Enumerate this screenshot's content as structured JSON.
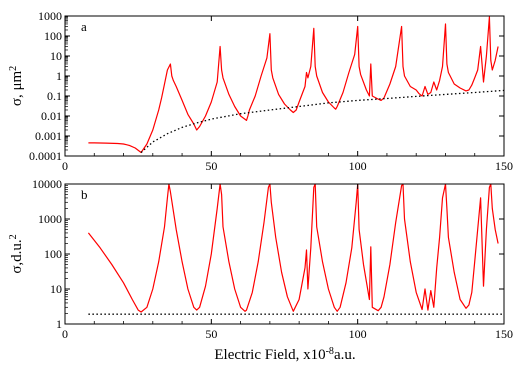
{
  "xlabel_main": "Electric Field, x10",
  "xlabel_sup": "-8",
  "xlabel_tail": "a.u.",
  "chart_data": [
    {
      "type": "line",
      "panel_label": "a",
      "ylabel": "σ, μm",
      "ylabel_sup": "2",
      "yscale": "log",
      "xlim": [
        0,
        150
      ],
      "ylim": [
        0.0001,
        1000
      ],
      "x_ticks": [
        0,
        50,
        100,
        150
      ],
      "x_tick_labels": [
        "0",
        "50",
        "100",
        "150"
      ],
      "y_ticks": [
        0.0001,
        0.001,
        0.01,
        0.1,
        1,
        10,
        100,
        1000
      ],
      "y_tick_labels": [
        "0.0001",
        "0.001",
        "0.01",
        "0.1",
        "1",
        "10",
        "100",
        "1000"
      ],
      "grid": false,
      "series": [
        {
          "style": "solid",
          "color": "#ff0000",
          "x": [
            8,
            10,
            14,
            18,
            20,
            22,
            24,
            26,
            28,
            30,
            32,
            33,
            34,
            35,
            36,
            36.5,
            37,
            38,
            40,
            42,
            44,
            45,
            46,
            48,
            50,
            52,
            53,
            53.5,
            54,
            56,
            58,
            60,
            62,
            62.5,
            63,
            65,
            67,
            69,
            70,
            70.5,
            71,
            73,
            75,
            77,
            78,
            79,
            80,
            82,
            82.5,
            83,
            84,
            85,
            85.5,
            86,
            88,
            90,
            92,
            92.5,
            93,
            95,
            97,
            99,
            100,
            100.5,
            101,
            103,
            104,
            104.5,
            105,
            107,
            108,
            109,
            111,
            113,
            115,
            115.5,
            116,
            118,
            120,
            121,
            122,
            123,
            124,
            125,
            126,
            127,
            128,
            129,
            130,
            130.5,
            131,
            133,
            135,
            137,
            138,
            139,
            140,
            141,
            142,
            143,
            144,
            145,
            145.5,
            146,
            147,
            148
          ],
          "y": [
            0.00045,
            0.00045,
            0.00044,
            0.00042,
            0.0004,
            0.00034,
            0.00025,
            0.00015,
            0.0004,
            0.002,
            0.02,
            0.08,
            0.4,
            2,
            4,
            1,
            0.6,
            0.3,
            0.06,
            0.012,
            0.004,
            0.002,
            0.003,
            0.01,
            0.05,
            0.5,
            30,
            2,
            0.8,
            0.12,
            0.03,
            0.01,
            0.006,
            0.01,
            0.02,
            0.1,
            1,
            8,
            130,
            2,
            0.8,
            0.12,
            0.04,
            0.02,
            0.015,
            0.02,
            0.05,
            0.3,
            1.5,
            0.8,
            3,
            240,
            3,
            1,
            0.15,
            0.05,
            0.025,
            0.022,
            0.03,
            0.15,
            1.5,
            12,
            300,
            3,
            1.2,
            0.2,
            0.1,
            4,
            0.1,
            0.07,
            0.06,
            0.08,
            0.4,
            3,
            300,
            3,
            1,
            0.3,
            0.2,
            0.13,
            0.1,
            0.3,
            0.12,
            0.15,
            0.5,
            0.2,
            0.6,
            3,
            400,
            4,
            1.5,
            0.4,
            0.25,
            0.18,
            0.2,
            0.35,
            0.8,
            2,
            30,
            0.5,
            10,
            900,
            6,
            2,
            6,
            30
          ]
        },
        {
          "style": "dotted",
          "color": "#000000",
          "x": [
            26,
            30,
            35,
            40,
            45,
            50,
            60,
            70,
            80,
            90,
            100,
            110,
            120,
            130,
            140,
            150
          ],
          "y": [
            0.00015,
            0.0005,
            0.0013,
            0.0027,
            0.0045,
            0.007,
            0.013,
            0.02,
            0.03,
            0.045,
            0.06,
            0.075,
            0.095,
            0.12,
            0.15,
            0.19
          ]
        }
      ]
    },
    {
      "type": "line",
      "panel_label": "b",
      "ylabel": "σ,d.u.",
      "ylabel_sup": "2",
      "yscale": "log",
      "xlim": [
        0,
        150
      ],
      "ylim": [
        1,
        10000
      ],
      "x_ticks": [
        0,
        50,
        100,
        150
      ],
      "x_tick_labels": [
        "0",
        "50",
        "100",
        "150"
      ],
      "y_ticks": [
        1,
        10,
        100,
        1000,
        10000
      ],
      "y_tick_labels": [
        "1",
        "10",
        "100",
        "1000",
        "10000"
      ],
      "grid": false,
      "series": [
        {
          "style": "solid",
          "color": "#ff0000",
          "x": [
            8,
            12,
            16,
            20,
            23,
            25,
            26,
            28,
            30,
            32,
            34,
            35,
            35.5,
            36,
            38,
            40,
            42,
            44,
            45,
            46,
            48,
            50,
            52,
            53,
            53.5,
            54,
            56,
            58,
            60,
            61.5,
            62,
            64,
            66,
            68,
            69.5,
            70,
            70.5,
            72,
            74,
            76,
            78,
            80,
            82,
            82.5,
            83,
            84,
            85,
            85.5,
            86,
            88,
            90,
            92,
            93,
            94,
            96,
            98,
            99.5,
            100,
            100.5,
            102,
            104,
            104.5,
            105,
            107,
            108,
            109,
            111,
            113,
            115,
            115.5,
            116,
            118,
            120,
            122,
            123,
            124,
            125,
            126,
            127,
            128,
            129,
            130,
            130.5,
            131,
            133,
            135,
            137,
            138,
            139,
            140,
            142,
            143,
            144,
            145,
            145.5,
            146,
            147,
            148
          ],
          "y": [
            400,
            150,
            50,
            15,
            5,
            2.5,
            2.2,
            3,
            10,
            60,
            600,
            4000,
            10000,
            6000,
            500,
            60,
            10,
            3,
            2.5,
            3,
            12,
            100,
            2000,
            10000,
            5000,
            600,
            60,
            10,
            3,
            2.3,
            2.5,
            8,
            60,
            800,
            8000,
            10000,
            3000,
            300,
            30,
            6,
            2.3,
            5,
            40,
            130,
            10,
            150,
            8000,
            10000,
            600,
            60,
            10,
            3,
            2.3,
            3,
            15,
            150,
            3000,
            10000,
            500,
            50,
            5,
            160,
            3,
            2.4,
            3,
            6,
            50,
            800,
            9000,
            10000,
            1000,
            60,
            8,
            2.6,
            10,
            2.5,
            9,
            3,
            40,
            300,
            4000,
            10000,
            2000,
            300,
            30,
            5,
            2.8,
            3.5,
            8,
            60,
            4000,
            12,
            500,
            8000,
            10000,
            2000,
            500,
            200
          ]
        },
        {
          "style": "dotted",
          "color": "#000000",
          "x": [
            8,
            150
          ],
          "y": [
            1.9,
            1.9
          ]
        }
      ]
    }
  ]
}
